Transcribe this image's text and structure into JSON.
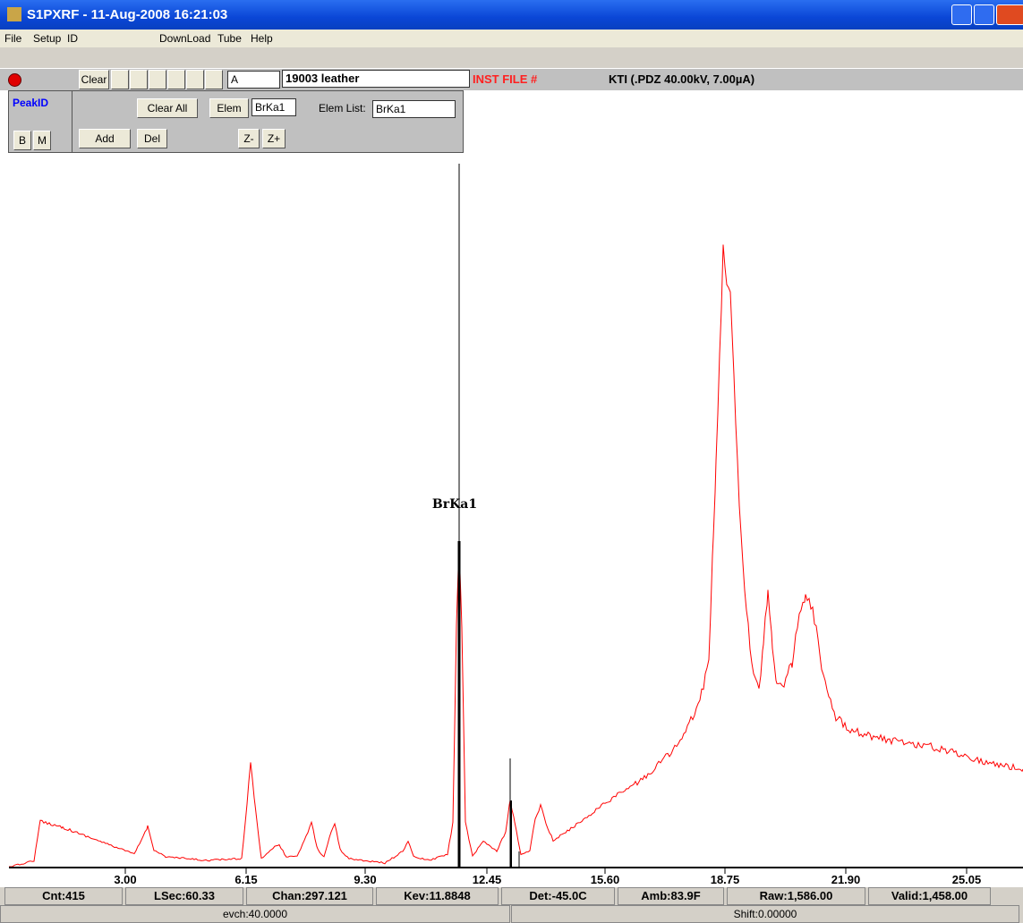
{
  "window": {
    "title": "S1PXRF - 11-Aug-2008 16:21:03"
  },
  "menu": [
    "File",
    "Setup",
    "ID",
    "DownLoad",
    "Tube",
    "Help"
  ],
  "toolbar": {
    "clear": "Clear",
    "combo": "A",
    "sample": "19003 leather",
    "inst_file": "INST FILE #",
    "info": "KTI  (.PDZ 40.00kV, 7.00µA)"
  },
  "peakid": {
    "title": "PeakID",
    "b": "B",
    "m": "M",
    "clear_all": "Clear All",
    "elem": "Elem",
    "elem_value": "BrKa1",
    "elem_list_label": "Elem List:",
    "elem_list_value": "BrKa1",
    "add": "Add",
    "del": "Del",
    "z_minus": "Z-",
    "z_plus": "Z+"
  },
  "plot": {
    "peak_label": "BrKa1",
    "xticks": [
      "3.00",
      "6.15",
      "9.30",
      "12.45",
      "15.60",
      "18.75",
      "21.90",
      "25.05"
    ]
  },
  "status": [
    "Cnt:415",
    "LSec:60.33",
    "Chan:297.121",
    "Kev:11.8848",
    "Det:-45.0C",
    "Amb:83.9F",
    "Raw:1,586.00",
    "Valid:1,458.00"
  ],
  "status2": [
    "evch:40.0000",
    "Shift:0.00000"
  ]
}
